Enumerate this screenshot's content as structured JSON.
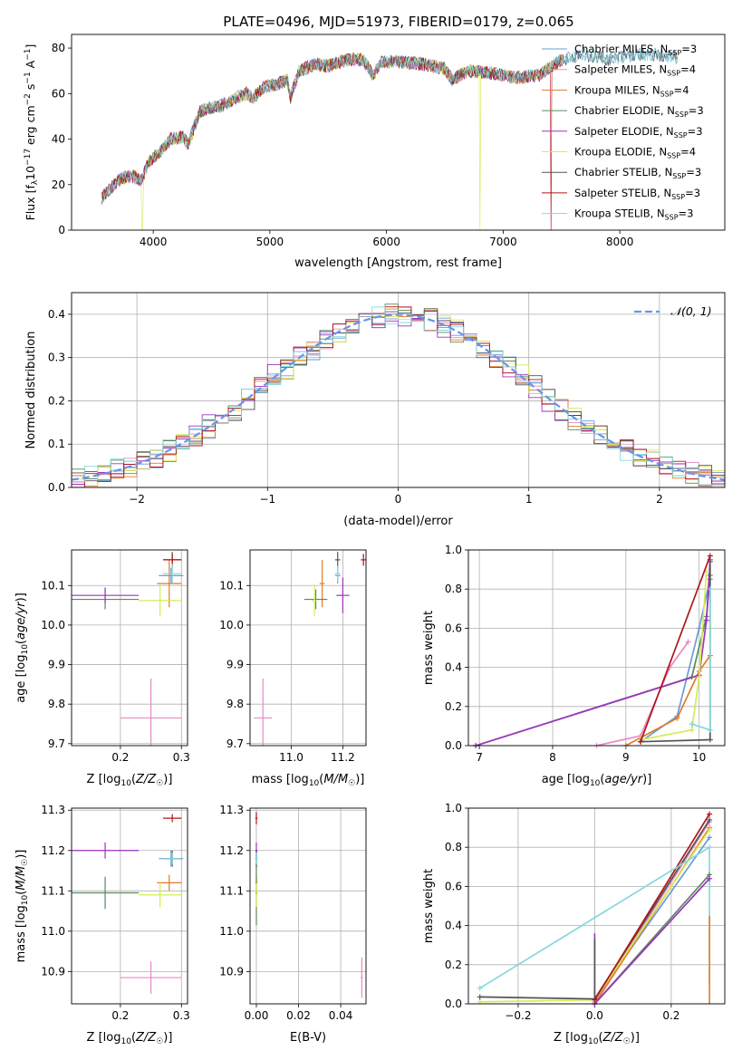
{
  "figure": {
    "title": "PLATE=0496, MJD=51973, FIBERID=0179, z=0.065"
  },
  "models": [
    {
      "name": "Chabrier MILES",
      "nssp": "3",
      "color": "#6c9bd8"
    },
    {
      "name": "Salpeter MILES",
      "nssp": "4",
      "color": "#e78ac3"
    },
    {
      "name": "Kroupa MILES",
      "nssp": "4",
      "color": "#e07b28"
    },
    {
      "name": "Chabrier ELODIE",
      "nssp": "3",
      "color": "#5a8a5e"
    },
    {
      "name": "Salpeter ELODIE",
      "nssp": "3",
      "color": "#9d33c0"
    },
    {
      "name": "Kroupa ELODIE",
      "nssp": "4",
      "color": "#d4ec52"
    },
    {
      "name": "Chabrier STELIB",
      "nssp": "3",
      "color": "#555555"
    },
    {
      "name": "Salpeter STELIB",
      "nssp": "3",
      "color": "#b0151b"
    },
    {
      "name": "Kroupa STELIB",
      "nssp": "3",
      "color": "#84d8dc"
    }
  ],
  "legend_nssp_prefix": "N",
  "legend_nssp_sub": "SSP",
  "chart_data": [
    {
      "id": "spectrum",
      "type": "line",
      "xlabel": "wavelength [Angstrom, rest frame]",
      "ylabel": "Flux [f_λ 10^-17 erg cm^-2 s^-1 A^-1]",
      "xlim": [
        3300,
        8900
      ],
      "ylim": [
        0,
        86
      ],
      "xticks": [
        "4000",
        "5000",
        "6000",
        "7000",
        "8000"
      ],
      "yticks": [
        "0",
        "20",
        "40",
        "60",
        "80"
      ],
      "legend_position": "top-right",
      "spectrum_nodes": [
        [
          3560,
          14
        ],
        [
          3700,
          22
        ],
        [
          3800,
          24
        ],
        [
          3900,
          22
        ],
        [
          3960,
          30
        ],
        [
          4050,
          34
        ],
        [
          4150,
          40
        ],
        [
          4250,
          41
        ],
        [
          4300,
          38
        ],
        [
          4400,
          52
        ],
        [
          4500,
          54
        ],
        [
          4600,
          55
        ],
        [
          4700,
          58
        ],
        [
          4800,
          60
        ],
        [
          4860,
          58
        ],
        [
          4950,
          63
        ],
        [
          5050,
          64
        ],
        [
          5150,
          66
        ],
        [
          5175,
          58
        ],
        [
          5250,
          70
        ],
        [
          5400,
          73
        ],
        [
          5500,
          72
        ],
        [
          5600,
          74
        ],
        [
          5700,
          75
        ],
        [
          5800,
          75
        ],
        [
          5890,
          68
        ],
        [
          5950,
          74
        ],
        [
          6100,
          74
        ],
        [
          6300,
          73
        ],
        [
          6500,
          71
        ],
        [
          6563,
          66
        ],
        [
          6700,
          70
        ],
        [
          6900,
          69
        ],
        [
          7100,
          67
        ],
        [
          7300,
          68
        ],
        [
          7500,
          75
        ],
        [
          7700,
          77
        ],
        [
          7900,
          75
        ],
        [
          8100,
          77
        ],
        [
          8300,
          77
        ],
        [
          8500,
          76
        ]
      ],
      "dropouts": [
        {
          "model": "Kroupa ELODIE",
          "x": 3905
        },
        {
          "model": "Kroupa ELODIE",
          "x": 6800
        },
        {
          "model": "Salpeter STELIB",
          "x": 7410
        }
      ]
    },
    {
      "id": "residuals",
      "type": "histogram",
      "xlabel": "(data-model)/error",
      "ylabel": "Normed distribution",
      "xlim": [
        -2.5,
        2.5
      ],
      "ylim": [
        0,
        0.45
      ],
      "xticks": [
        "−2",
        "−1",
        "0",
        "1",
        "2"
      ],
      "yticks": [
        "0.0",
        "0.1",
        "0.2",
        "0.3",
        "0.4"
      ],
      "bin_width": 0.1,
      "reference_curve": "𝒩(0, 1)",
      "reference_color": "#6495ed",
      "legend_position": "top-right"
    },
    {
      "id": "age_vs_Z",
      "type": "scatter",
      "xlabel": "Z [log10(Z/Z☉)]",
      "ylabel": "age [log10(age/yr)]",
      "xlim": [
        0.12,
        0.31
      ],
      "ylim": [
        9.695,
        10.19
      ],
      "xticks": [
        0.2,
        0.3
      ],
      "yticks": [
        9.7,
        9.8,
        9.9,
        10.0,
        10.1
      ],
      "points": [
        {
          "model": "Chabrier MILES",
          "x": 0.283,
          "y": 10.125,
          "xerr": 0.02,
          "yerr": 0.02
        },
        {
          "model": "Salpeter MILES",
          "x": 0.25,
          "y": 9.765,
          "xerr": 0.05,
          "yerr": 0.1
        },
        {
          "model": "Kroupa MILES",
          "x": 0.28,
          "y": 10.105,
          "xerr": 0.02,
          "yerr": 0.06
        },
        {
          "model": "Chabrier ELODIE",
          "x": 0.175,
          "y": 10.065,
          "xerr": 0.055,
          "yerr": 0.025
        },
        {
          "model": "Salpeter ELODIE",
          "x": 0.175,
          "y": 10.075,
          "xerr": 0.055,
          "yerr": 0.02
        },
        {
          "model": "Kroupa ELODIE",
          "x": 0.265,
          "y": 10.062,
          "xerr": 0.035,
          "yerr": 0.04
        },
        {
          "model": "Chabrier STELIB",
          "x": 0.285,
          "y": 10.165,
          "xerr": 0.015,
          "yerr": 0.02
        },
        {
          "model": "Salpeter STELIB",
          "x": 0.285,
          "y": 10.165,
          "xerr": 0.015,
          "yerr": 0.015
        },
        {
          "model": "Kroupa STELIB",
          "x": 0.285,
          "y": 10.13,
          "xerr": 0.015,
          "yerr": 0.025
        }
      ]
    },
    {
      "id": "age_vs_mass",
      "type": "scatter",
      "xlabel": "mass [log10(M/M☉)]",
      "ylabel": "",
      "xlim": [
        10.84,
        11.29
      ],
      "ylim": [
        9.695,
        10.19
      ],
      "xticks": [
        11.0,
        11.2
      ],
      "yticks": [
        9.7,
        9.8,
        9.9,
        10.0,
        10.1
      ],
      "points": [
        {
          "model": "Chabrier MILES",
          "x": 11.18,
          "y": 10.125,
          "xerr": 0.01,
          "yerr": 0.02
        },
        {
          "model": "Salpeter MILES",
          "x": 10.89,
          "y": 9.765,
          "xerr": 0.035,
          "yerr": 0.1
        },
        {
          "model": "Kroupa MILES",
          "x": 11.12,
          "y": 10.105,
          "xerr": 0.01,
          "yerr": 0.06
        },
        {
          "model": "Chabrier ELODIE",
          "x": 11.095,
          "y": 10.065,
          "xerr": 0.045,
          "yerr": 0.025
        },
        {
          "model": "Salpeter ELODIE",
          "x": 11.2,
          "y": 10.075,
          "xerr": 0.025,
          "yerr": 0.045
        },
        {
          "model": "Kroupa ELODIE",
          "x": 11.09,
          "y": 10.062,
          "xerr": 0.01,
          "yerr": 0.04
        },
        {
          "model": "Chabrier STELIB",
          "x": 11.18,
          "y": 10.165,
          "xerr": 0.01,
          "yerr": 0.02
        },
        {
          "model": "Salpeter STELIB",
          "x": 11.28,
          "y": 10.165,
          "xerr": 0.01,
          "yerr": 0.015
        },
        {
          "model": "Kroupa STELIB",
          "x": 11.18,
          "y": 10.13,
          "xerr": 0.01,
          "yerr": 0.02
        }
      ]
    },
    {
      "id": "weight_vs_age",
      "type": "line",
      "xlabel": "age [log10(age/yr)]",
      "ylabel": "mass weight",
      "xlim": [
        6.85,
        10.35
      ],
      "ylim": [
        0,
        1.0
      ],
      "xticks": [
        7,
        8,
        9,
        10
      ],
      "yticks": [
        "0.0",
        "0.2",
        "0.4",
        "0.6",
        "0.8",
        "1.0"
      ],
      "series": [
        {
          "model": "Chabrier MILES",
          "points": [
            [
              9.2,
              0.02
            ],
            [
              9.7,
              0.15
            ],
            [
              10.0,
              0.6
            ],
            [
              10.15,
              0.85
            ]
          ]
        },
        {
          "model": "Salpeter MILES",
          "points": [
            [
              8.6,
              0.0
            ],
            [
              9.2,
              0.05
            ],
            [
              9.6,
              0.4
            ],
            [
              9.85,
              0.53
            ]
          ]
        },
        {
          "model": "Kroupa MILES",
          "points": [
            [
              9.0,
              0.0
            ],
            [
              9.7,
              0.14
            ],
            [
              10.0,
              0.38
            ],
            [
              10.15,
              0.46
            ]
          ]
        },
        {
          "model": "Chabrier ELODIE",
          "points": [
            [
              6.95,
              0.0
            ],
            [
              9.9,
              0.35
            ],
            [
              10.1,
              0.66
            ],
            [
              10.15,
              0.87
            ]
          ]
        },
        {
          "model": "Salpeter ELODIE",
          "points": [
            [
              6.95,
              0.0
            ],
            [
              10.0,
              0.36
            ],
            [
              10.1,
              0.64
            ],
            [
              10.15,
              0.95
            ]
          ]
        },
        {
          "model": "Kroupa ELODIE",
          "points": [
            [
              9.2,
              0.03
            ],
            [
              9.9,
              0.08
            ],
            [
              10.0,
              0.35
            ],
            [
              10.1,
              0.89
            ]
          ]
        },
        {
          "model": "Chabrier STELIB",
          "points": [
            [
              9.2,
              0.02
            ],
            [
              10.15,
              0.03
            ],
            [
              10.15,
              0.94
            ]
          ]
        },
        {
          "model": "Salpeter STELIB",
          "points": [
            [
              9.2,
              0.02
            ],
            [
              10.15,
              0.97
            ]
          ]
        },
        {
          "model": "Kroupa STELIB",
          "points": [
            [
              9.9,
              0.11
            ],
            [
              10.15,
              0.08
            ],
            [
              10.15,
              0.8
            ]
          ]
        }
      ]
    },
    {
      "id": "mass_vs_Z",
      "type": "scatter",
      "xlabel": "Z [log10(Z/Z☉)]",
      "ylabel": "mass [log10(M/M☉)]",
      "xlim": [
        0.12,
        0.31
      ],
      "ylim": [
        10.82,
        11.305
      ],
      "xticks": [
        0.2,
        0.3
      ],
      "yticks": [
        10.9,
        11.0,
        11.1,
        11.2,
        11.3
      ],
      "points": [
        {
          "model": "Chabrier MILES",
          "x": 0.283,
          "y": 11.18,
          "xerr": 0.02,
          "yerr": 0.02
        },
        {
          "model": "Salpeter MILES",
          "x": 0.25,
          "y": 10.885,
          "xerr": 0.05,
          "yerr": 0.04
        },
        {
          "model": "Kroupa MILES",
          "x": 0.28,
          "y": 11.12,
          "xerr": 0.02,
          "yerr": 0.02
        },
        {
          "model": "Chabrier ELODIE",
          "x": 0.175,
          "y": 11.095,
          "xerr": 0.055,
          "yerr": 0.04
        },
        {
          "model": "Salpeter ELODIE",
          "x": 0.175,
          "y": 11.2,
          "xerr": 0.055,
          "yerr": 0.02
        },
        {
          "model": "Kroupa ELODIE",
          "x": 0.265,
          "y": 11.09,
          "xerr": 0.035,
          "yerr": 0.03
        },
        {
          "model": "Chabrier STELIB",
          "x": 0.285,
          "y": 11.18,
          "xerr": 0.015,
          "yerr": 0.02
        },
        {
          "model": "Salpeter STELIB",
          "x": 0.285,
          "y": 11.28,
          "xerr": 0.015,
          "yerr": 0.01
        },
        {
          "model": "Kroupa STELIB",
          "x": 0.285,
          "y": 11.18,
          "xerr": 0.015,
          "yerr": 0.015
        }
      ]
    },
    {
      "id": "mass_vs_EBV",
      "type": "scatter",
      "xlabel": "E(B-V)",
      "ylabel": "",
      "xlim": [
        -0.003,
        0.052
      ],
      "ylim": [
        10.82,
        11.305
      ],
      "xticks": [
        "0.00",
        "0.02",
        "0.04"
      ],
      "ytick_values": [
        10.9,
        11.0,
        11.1,
        11.2,
        11.3
      ],
      "points": [
        {
          "model": "Chabrier MILES",
          "x": 0.0,
          "y": 11.18,
          "xerr": 0.0005,
          "yerr": 0.02
        },
        {
          "model": "Salpeter MILES",
          "x": 0.05,
          "y": 10.885,
          "xerr": 0.0005,
          "yerr": 0.05
        },
        {
          "model": "Kroupa MILES",
          "x": 0.0,
          "y": 11.12,
          "xerr": 0.0005,
          "yerr": 0.02
        },
        {
          "model": "Chabrier ELODIE",
          "x": 0.0,
          "y": 11.095,
          "xerr": 0.0005,
          "yerr": 0.08
        },
        {
          "model": "Salpeter ELODIE",
          "x": 0.0,
          "y": 11.2,
          "xerr": 0.0005,
          "yerr": 0.02
        },
        {
          "model": "Kroupa ELODIE",
          "x": 0.0,
          "y": 11.09,
          "xerr": 0.0005,
          "yerr": 0.03
        },
        {
          "model": "Chabrier STELIB",
          "x": 0.0,
          "y": 11.18,
          "xerr": 0.0005,
          "yerr": 0.02
        },
        {
          "model": "Salpeter STELIB",
          "x": 0.0,
          "y": 11.28,
          "xerr": 0.0005,
          "yerr": 0.015
        },
        {
          "model": "Kroupa STELIB",
          "x": 0.0,
          "y": 11.18,
          "xerr": 0.0005,
          "yerr": 0.015
        }
      ]
    },
    {
      "id": "weight_vs_Z",
      "type": "line",
      "xlabel": "Z [log10(Z/Z☉)]",
      "ylabel": "mass weight",
      "xlim": [
        -0.33,
        0.34
      ],
      "ylim": [
        0,
        1.0
      ],
      "xticks": [
        "−0.2",
        "0.0",
        "0.2"
      ],
      "xtick_values": [
        -0.2,
        0.0,
        0.2
      ],
      "yticks": [
        "0.0",
        "0.2",
        "0.4",
        "0.6",
        "0.8",
        "1.0"
      ],
      "series": [
        {
          "model": "Chabrier MILES",
          "points": [
            [
              0.0,
              0.02
            ],
            [
              0.3,
              0.85
            ]
          ]
        },
        {
          "model": "Salpeter MILES",
          "points": [
            [
              0.0,
              0.01
            ],
            [
              0.3,
              0.93
            ]
          ]
        },
        {
          "model": "Kroupa MILES",
          "points": [
            [
              0.0,
              0.0
            ],
            [
              0.3,
              0.9
            ]
          ]
        },
        {
          "model": "Chabrier ELODIE",
          "points": [
            [
              0.0,
              0.0
            ],
            [
              0.3,
              0.66
            ]
          ]
        },
        {
          "model": "Salpeter ELODIE",
          "points": [
            [
              0.0,
              0.0
            ],
            [
              0.3,
              0.64
            ]
          ]
        },
        {
          "model": "Kroupa ELODIE",
          "points": [
            [
              -0.3,
              0.01
            ],
            [
              0.0,
              0.02
            ],
            [
              0.3,
              0.89
            ]
          ]
        },
        {
          "model": "Chabrier STELIB",
          "points": [
            [
              -0.3,
              0.035
            ],
            [
              0.0,
              0.025
            ],
            [
              0.3,
              0.94
            ]
          ]
        },
        {
          "model": "Salpeter STELIB",
          "points": [
            [
              0.0,
              0.02
            ],
            [
              0.3,
              0.97
            ]
          ]
        },
        {
          "model": "Kroupa STELIB",
          "points": [
            [
              -0.3,
              0.08
            ],
            [
              0.3,
              0.8
            ]
          ]
        }
      ],
      "vertical_segments": [
        {
          "model": "Salpeter ELODIE",
          "x": 0.0,
          "y0": 0.0,
          "y1": 0.36
        },
        {
          "model": "Chabrier STELIB",
          "x": 0.0,
          "y0": 0.0,
          "y1": 0.33
        },
        {
          "model": "Kroupa STELIB",
          "x": 0.3,
          "y0": 0.1,
          "y1": 0.8
        },
        {
          "model": "Kroupa MILES",
          "x": 0.3,
          "y0": 0.0,
          "y1": 0.45
        }
      ]
    }
  ]
}
